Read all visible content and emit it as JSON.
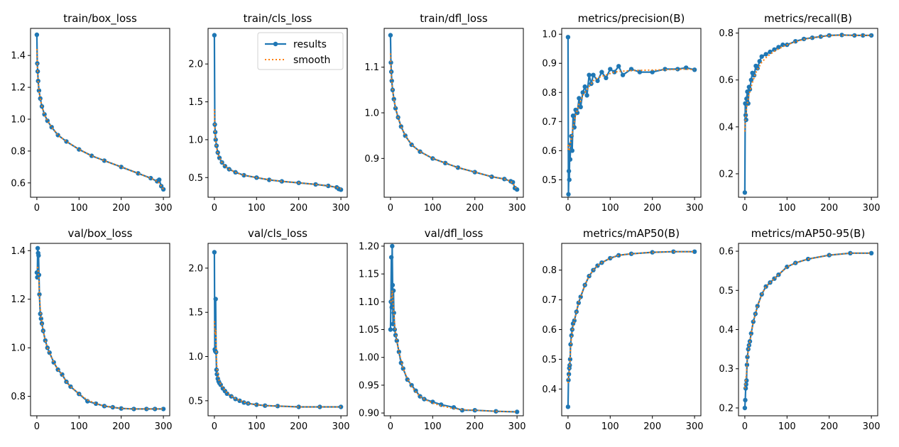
{
  "colors": {
    "background": "#ffffff",
    "axes": "#000000",
    "results": "#1f77b4",
    "smooth": "#ff7f0e"
  },
  "legend": {
    "results_label": "results",
    "smooth_label": "smooth",
    "location": "upper-right"
  },
  "chart_data": [
    {
      "type": "line",
      "title": "train/box_loss",
      "x": [
        0,
        1,
        2,
        3,
        5,
        8,
        12,
        18,
        25,
        35,
        50,
        70,
        100,
        130,
        160,
        200,
        240,
        270,
        285,
        290,
        295,
        300
      ],
      "y": [
        1.53,
        1.35,
        1.3,
        1.24,
        1.18,
        1.13,
        1.08,
        1.03,
        0.99,
        0.95,
        0.9,
        0.86,
        0.81,
        0.77,
        0.74,
        0.7,
        0.66,
        0.63,
        0.61,
        0.62,
        0.58,
        0.56
      ],
      "smooth_y": [
        1.44,
        1.35,
        1.29,
        1.24,
        1.18,
        1.13,
        1.08,
        1.03,
        0.99,
        0.95,
        0.9,
        0.86,
        0.81,
        0.77,
        0.74,
        0.7,
        0.66,
        0.63,
        0.61,
        0.6,
        0.58,
        0.56
      ],
      "xlim": [
        -15,
        315
      ],
      "ylim": [
        0.51,
        1.57
      ],
      "xticks": [
        0,
        100,
        200,
        300
      ],
      "yticks": [
        0.6,
        0.8,
        1.0,
        1.2,
        1.4
      ],
      "ytick_labels": [
        "0.6",
        "0.8",
        "1.0",
        "1.2",
        "1.4"
      ],
      "legend": false
    },
    {
      "type": "line",
      "title": "train/cls_loss",
      "x": [
        0,
        1,
        2,
        3,
        5,
        8,
        12,
        18,
        25,
        35,
        50,
        70,
        100,
        130,
        160,
        200,
        240,
        270,
        290,
        295,
        300
      ],
      "y": [
        2.38,
        1.2,
        1.1,
        1.0,
        0.92,
        0.83,
        0.76,
        0.7,
        0.65,
        0.61,
        0.57,
        0.53,
        0.5,
        0.47,
        0.45,
        0.43,
        0.41,
        0.39,
        0.37,
        0.35,
        0.34
      ],
      "smooth_y": [
        1.4,
        1.15,
        1.05,
        0.98,
        0.9,
        0.82,
        0.76,
        0.7,
        0.65,
        0.61,
        0.57,
        0.53,
        0.5,
        0.47,
        0.45,
        0.43,
        0.41,
        0.39,
        0.37,
        0.36,
        0.35
      ],
      "xlim": [
        -15,
        315
      ],
      "ylim": [
        0.24,
        2.47
      ],
      "xticks": [
        0,
        100,
        200,
        300
      ],
      "yticks": [
        0.5,
        1.0,
        1.5,
        2.0
      ],
      "ytick_labels": [
        "0.5",
        "1.0",
        "1.5",
        "2.0"
      ],
      "legend": true
    },
    {
      "type": "line",
      "title": "train/dfl_loss",
      "x": [
        0,
        1,
        2,
        3,
        5,
        8,
        12,
        18,
        25,
        35,
        50,
        70,
        100,
        130,
        160,
        200,
        240,
        270,
        285,
        290,
        295,
        300
      ],
      "y": [
        1.17,
        1.11,
        1.09,
        1.07,
        1.05,
        1.03,
        1.01,
        0.99,
        0.97,
        0.95,
        0.93,
        0.915,
        0.9,
        0.89,
        0.88,
        0.87,
        0.86,
        0.855,
        0.85,
        0.848,
        0.835,
        0.832
      ],
      "smooth_y": [
        1.13,
        1.1,
        1.08,
        1.07,
        1.05,
        1.03,
        1.01,
        0.99,
        0.97,
        0.95,
        0.93,
        0.915,
        0.9,
        0.89,
        0.88,
        0.87,
        0.86,
        0.855,
        0.85,
        0.845,
        0.838,
        0.833
      ],
      "xlim": [
        -15,
        315
      ],
      "ylim": [
        0.815,
        1.185
      ],
      "xticks": [
        0,
        100,
        200,
        300
      ],
      "yticks": [
        0.9,
        1.0,
        1.1
      ],
      "ytick_labels": [
        "0.9",
        "1.0",
        "1.1"
      ],
      "legend": false
    },
    {
      "type": "line",
      "title": "metrics/precision(B)",
      "x": [
        0,
        1,
        2,
        3,
        4,
        5,
        6,
        8,
        10,
        12,
        15,
        18,
        22,
        26,
        30,
        35,
        40,
        45,
        50,
        55,
        60,
        70,
        80,
        90,
        100,
        110,
        120,
        130,
        150,
        170,
        200,
        230,
        260,
        280,
        300
      ],
      "y": [
        0.99,
        0.45,
        0.53,
        0.5,
        0.6,
        0.57,
        0.62,
        0.65,
        0.6,
        0.72,
        0.68,
        0.74,
        0.73,
        0.78,
        0.75,
        0.8,
        0.82,
        0.79,
        0.86,
        0.83,
        0.86,
        0.84,
        0.87,
        0.85,
        0.88,
        0.87,
        0.89,
        0.86,
        0.88,
        0.87,
        0.87,
        0.88,
        0.88,
        0.885,
        0.878
      ],
      "smooth_y": [
        0.62,
        0.6,
        0.6,
        0.6,
        0.61,
        0.62,
        0.63,
        0.64,
        0.66,
        0.68,
        0.7,
        0.72,
        0.74,
        0.76,
        0.77,
        0.79,
        0.8,
        0.81,
        0.82,
        0.83,
        0.84,
        0.85,
        0.855,
        0.86,
        0.865,
        0.87,
        0.872,
        0.873,
        0.875,
        0.876,
        0.877,
        0.878,
        0.879,
        0.88,
        0.878
      ],
      "xlim": [
        -15,
        315
      ],
      "ylim": [
        0.44,
        1.02
      ],
      "xticks": [
        0,
        100,
        200,
        300
      ],
      "yticks": [
        0.5,
        0.6,
        0.7,
        0.8,
        0.9,
        1.0
      ],
      "ytick_labels": [
        "0.5",
        "0.6",
        "0.7",
        "0.8",
        "0.9",
        "1.0"
      ],
      "legend": false
    },
    {
      "type": "line",
      "title": "metrics/recall(B)",
      "x": [
        0,
        1,
        2,
        3,
        4,
        6,
        8,
        10,
        12,
        15,
        18,
        22,
        26,
        30,
        35,
        40,
        50,
        60,
        70,
        80,
        90,
        100,
        120,
        140,
        160,
        180,
        200,
        230,
        260,
        280,
        300
      ],
      "y": [
        0.12,
        0.5,
        0.45,
        0.43,
        0.52,
        0.55,
        0.5,
        0.57,
        0.56,
        0.6,
        0.63,
        0.62,
        0.66,
        0.65,
        0.68,
        0.7,
        0.71,
        0.72,
        0.73,
        0.74,
        0.75,
        0.75,
        0.765,
        0.775,
        0.78,
        0.785,
        0.79,
        0.792,
        0.79,
        0.79,
        0.79
      ],
      "smooth_y": [
        0.38,
        0.42,
        0.44,
        0.46,
        0.48,
        0.5,
        0.52,
        0.54,
        0.55,
        0.57,
        0.59,
        0.61,
        0.63,
        0.645,
        0.66,
        0.675,
        0.695,
        0.71,
        0.722,
        0.733,
        0.742,
        0.75,
        0.763,
        0.773,
        0.78,
        0.785,
        0.789,
        0.791,
        0.79,
        0.79,
        0.79
      ],
      "xlim": [
        -15,
        315
      ],
      "ylim": [
        0.1,
        0.82
      ],
      "xticks": [
        0,
        100,
        200,
        300
      ],
      "yticks": [
        0.2,
        0.4,
        0.6,
        0.8
      ],
      "ytick_labels": [
        "0.2",
        "0.4",
        "0.6",
        "0.8"
      ],
      "legend": false
    },
    {
      "type": "line",
      "title": "val/box_loss",
      "x": [
        0,
        1,
        2,
        3,
        4,
        5,
        6,
        8,
        10,
        12,
        15,
        20,
        25,
        30,
        40,
        50,
        60,
        70,
        80,
        100,
        120,
        140,
        160,
        180,
        200,
        230,
        260,
        280,
        300
      ],
      "y": [
        1.31,
        1.29,
        1.41,
        1.39,
        1.38,
        1.3,
        1.22,
        1.14,
        1.12,
        1.1,
        1.07,
        1.03,
        1.0,
        0.98,
        0.94,
        0.91,
        0.89,
        0.86,
        0.84,
        0.81,
        0.78,
        0.77,
        0.76,
        0.755,
        0.75,
        0.748,
        0.748,
        0.748,
        0.748
      ],
      "smooth_y": [
        1.33,
        1.33,
        1.33,
        1.32,
        1.3,
        1.27,
        1.22,
        1.16,
        1.13,
        1.1,
        1.07,
        1.03,
        1.0,
        0.98,
        0.94,
        0.91,
        0.89,
        0.86,
        0.84,
        0.81,
        0.785,
        0.77,
        0.76,
        0.755,
        0.75,
        0.748,
        0.748,
        0.748,
        0.748
      ],
      "xlim": [
        -15,
        315
      ],
      "ylim": [
        0.72,
        1.43
      ],
      "xticks": [
        0,
        100,
        200,
        300
      ],
      "yticks": [
        0.8,
        1.0,
        1.2,
        1.4
      ],
      "ytick_labels": [
        "0.8",
        "1.0",
        "1.2",
        "1.4"
      ],
      "legend": false
    },
    {
      "type": "line",
      "title": "val/cls_loss",
      "x": [
        0,
        1,
        2,
        3,
        4,
        5,
        6,
        8,
        10,
        12,
        15,
        20,
        25,
        30,
        40,
        50,
        60,
        70,
        80,
        100,
        120,
        150,
        200,
        250,
        300
      ],
      "y": [
        2.18,
        1.08,
        1.06,
        1.65,
        1.05,
        0.85,
        0.8,
        0.75,
        0.72,
        0.7,
        0.68,
        0.64,
        0.61,
        0.58,
        0.55,
        0.52,
        0.5,
        0.48,
        0.47,
        0.455,
        0.445,
        0.44,
        0.43,
        0.43,
        0.43
      ],
      "smooth_y": [
        1.4,
        1.3,
        1.25,
        1.3,
        1.15,
        0.98,
        0.88,
        0.8,
        0.75,
        0.72,
        0.69,
        0.65,
        0.62,
        0.59,
        0.555,
        0.525,
        0.505,
        0.485,
        0.47,
        0.455,
        0.445,
        0.44,
        0.43,
        0.43,
        0.43
      ],
      "xlim": [
        -15,
        315
      ],
      "ylim": [
        0.33,
        2.28
      ],
      "xticks": [
        0,
        100,
        200,
        300
      ],
      "yticks": [
        0.5,
        1.0,
        1.5,
        2.0
      ],
      "ytick_labels": [
        "0.5",
        "1.0",
        "1.5",
        "2.0"
      ],
      "legend": false
    },
    {
      "type": "line",
      "title": "val/dfl_loss",
      "x": [
        0,
        1,
        2,
        3,
        4,
        5,
        6,
        7,
        8,
        10,
        12,
        15,
        20,
        25,
        30,
        40,
        50,
        60,
        70,
        80,
        100,
        120,
        150,
        170,
        200,
        250,
        300
      ],
      "y": [
        1.05,
        1.1,
        1.18,
        1.09,
        1.2,
        1.13,
        1.06,
        1.12,
        1.08,
        1.05,
        1.04,
        1.03,
        1.01,
        0.99,
        0.98,
        0.96,
        0.95,
        0.94,
        0.93,
        0.925,
        0.92,
        0.915,
        0.91,
        0.905,
        0.905,
        0.903,
        0.902
      ],
      "smooth_y": [
        1.1,
        1.1,
        1.11,
        1.11,
        1.12,
        1.11,
        1.1,
        1.09,
        1.08,
        1.06,
        1.045,
        1.03,
        1.01,
        0.995,
        0.98,
        0.962,
        0.948,
        0.938,
        0.93,
        0.925,
        0.918,
        0.913,
        0.908,
        0.906,
        0.905,
        0.903,
        0.902
      ],
      "xlim": [
        -15,
        315
      ],
      "ylim": [
        0.895,
        1.205
      ],
      "xticks": [
        0,
        100,
        200,
        300
      ],
      "yticks": [
        0.9,
        0.95,
        1.0,
        1.05,
        1.1,
        1.15,
        1.2
      ],
      "ytick_labels": [
        "0.90",
        "0.95",
        "1.00",
        "1.05",
        "1.10",
        "1.15",
        "1.20"
      ],
      "legend": false
    },
    {
      "type": "line",
      "title": "metrics/mAP50(B)",
      "x": [
        0,
        1,
        2,
        3,
        4,
        5,
        6,
        8,
        10,
        12,
        15,
        20,
        25,
        30,
        40,
        50,
        60,
        70,
        80,
        100,
        120,
        150,
        200,
        250,
        300
      ],
      "y": [
        0.34,
        0.43,
        0.45,
        0.47,
        0.48,
        0.5,
        0.55,
        0.58,
        0.6,
        0.62,
        0.63,
        0.66,
        0.69,
        0.71,
        0.75,
        0.78,
        0.8,
        0.815,
        0.825,
        0.84,
        0.85,
        0.855,
        0.86,
        0.862,
        0.862
      ],
      "smooth_y": [
        0.42,
        0.44,
        0.45,
        0.46,
        0.48,
        0.5,
        0.54,
        0.57,
        0.59,
        0.61,
        0.63,
        0.66,
        0.69,
        0.71,
        0.75,
        0.78,
        0.8,
        0.815,
        0.825,
        0.84,
        0.85,
        0.855,
        0.86,
        0.862,
        0.862
      ],
      "xlim": [
        -15,
        315
      ],
      "ylim": [
        0.31,
        0.89
      ],
      "xticks": [
        0,
        100,
        200,
        300
      ],
      "yticks": [
        0.4,
        0.5,
        0.6,
        0.7,
        0.8
      ],
      "ytick_labels": [
        "0.4",
        "0.5",
        "0.6",
        "0.7",
        "0.8"
      ],
      "legend": false
    },
    {
      "type": "line",
      "title": "metrics/mAP50-95(B)",
      "x": [
        0,
        1,
        2,
        3,
        4,
        5,
        6,
        8,
        10,
        12,
        15,
        20,
        25,
        30,
        40,
        50,
        60,
        70,
        80,
        100,
        120,
        150,
        200,
        250,
        300
      ],
      "y": [
        0.2,
        0.22,
        0.25,
        0.26,
        0.27,
        0.31,
        0.33,
        0.35,
        0.36,
        0.37,
        0.39,
        0.42,
        0.44,
        0.46,
        0.49,
        0.51,
        0.52,
        0.53,
        0.54,
        0.56,
        0.57,
        0.58,
        0.59,
        0.595,
        0.595
      ],
      "smooth_y": [
        0.25,
        0.26,
        0.27,
        0.28,
        0.29,
        0.31,
        0.33,
        0.345,
        0.36,
        0.37,
        0.39,
        0.42,
        0.44,
        0.46,
        0.49,
        0.51,
        0.52,
        0.53,
        0.54,
        0.56,
        0.57,
        0.58,
        0.59,
        0.595,
        0.595
      ],
      "xlim": [
        -15,
        315
      ],
      "ylim": [
        0.18,
        0.62
      ],
      "xticks": [
        0,
        100,
        200,
        300
      ],
      "yticks": [
        0.2,
        0.3,
        0.4,
        0.5,
        0.6
      ],
      "ytick_labels": [
        "0.2",
        "0.3",
        "0.4",
        "0.5",
        "0.6"
      ],
      "legend": false
    }
  ]
}
